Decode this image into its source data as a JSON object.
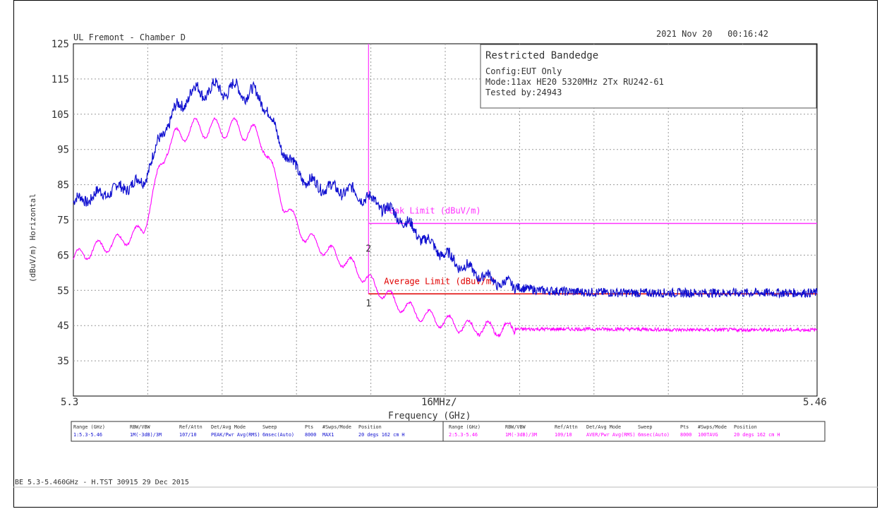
{
  "header": {
    "site": "UL Fremont - Chamber D",
    "datetime": "2021 Nov 20   00:16:42"
  },
  "infobox": {
    "title": "Restricted Bandedge",
    "config": "Config:EUT Only",
    "mode": "Mode:11ax HE20 5320MHz 2Tx RU242-61",
    "tested_by": "Tested by:24943"
  },
  "colors": {
    "peak_trace": "#1010d0",
    "average_trace": "#ff00ff",
    "peak_limit": "#ff33ff",
    "average_limit": "#e00000",
    "marker_line": "#ff33ff",
    "grid": "#9a9a9a"
  },
  "chart_data": {
    "type": "line",
    "xlabel": "Frequency (GHz)",
    "ylabel": "(dBuV/m) Horizontal",
    "x_tick_labels": [
      "5.3",
      "16MHz/",
      "5.46"
    ],
    "xlim": [
      5.3,
      5.46
    ],
    "ylim": [
      25,
      125
    ],
    "y_ticks": [
      125,
      115,
      105,
      95,
      85,
      75,
      65,
      55,
      45,
      35
    ],
    "grid": true,
    "series": [
      {
        "color": "#1010d0",
        "x": [
          5.3,
          5.305,
          5.31,
          5.315,
          5.32,
          5.325,
          5.33,
          5.335,
          5.338,
          5.341,
          5.345,
          5.35,
          5.355,
          5.36,
          5.365,
          5.37,
          5.375,
          5.38,
          5.385,
          5.39,
          5.395,
          5.4,
          5.41,
          5.42,
          5.43,
          5.44,
          5.45,
          5.46
        ],
        "y": [
          80,
          82,
          84,
          86,
          102,
          111,
          112,
          112,
          111,
          109,
          95,
          86,
          84,
          83,
          80,
          76,
          70,
          65,
          61,
          58,
          56,
          55,
          54.5,
          54.3,
          54.3,
          54.3,
          54.3,
          54.3
        ]
      },
      {
        "color": "#ff00ff",
        "x": [
          5.3,
          5.305,
          5.31,
          5.315,
          5.32,
          5.325,
          5.33,
          5.335,
          5.338,
          5.341,
          5.345,
          5.35,
          5.355,
          5.36,
          5.365,
          5.37,
          5.375,
          5.38,
          5.385,
          5.39,
          5.395,
          5.4,
          5.41,
          5.42,
          5.43,
          5.44,
          5.45,
          5.46
        ],
        "y": [
          64,
          67,
          69,
          72,
          96,
          101,
          101,
          101,
          100,
          97,
          80,
          70,
          66,
          62,
          56,
          51,
          48,
          46,
          44.5,
          44,
          44,
          44,
          44,
          44,
          43.8,
          43.8,
          43.8,
          43.8
        ]
      }
    ],
    "limits": [
      {
        "name": "Peak Limit (dBuV/m)",
        "y": 74,
        "x_start": 5.3635,
        "x_end": 5.46,
        "color": "#ff33ff"
      },
      {
        "name": "Average Limit (dBuV/m)",
        "y": 54,
        "x_start": 5.3635,
        "x_end": 5.46,
        "color": "#e00000"
      }
    ],
    "marker_line_x": 5.3635,
    "markers": [
      {
        "label": "2",
        "x": 5.3635,
        "y": 66
      },
      {
        "label": "1",
        "x": 5.3635,
        "y": 50.5
      }
    ]
  },
  "settings_table": {
    "left": {
      "headers": [
        "Range (GHz)",
        "RBW/VBW",
        "Ref/Attn",
        "Det/Avg Mode",
        "Sweep",
        "Pts",
        "#Swps/Mode",
        "Position"
      ],
      "values": [
        "1:5.3-5.46",
        "1M(-3dB)/3M",
        "107/10",
        "PEAK/Pwr Avg(RMS)",
        "6msec(Auto)",
        "8000",
        "MAX1",
        "20 degs 162 cm H"
      ]
    },
    "right": {
      "headers": [
        "Range (GHz)",
        "RBW/VBW",
        "Ref/Attn",
        "Det/Avg Mode",
        "Sweep",
        "Pts",
        "#Swps/Mode",
        "Position"
      ],
      "values": [
        "2:5.3-5.46",
        "1M(-3dB)/3M",
        "109/10",
        "AVER/Pwr Avg(RMS)",
        "6msec(Auto)",
        "8000",
        "100TAVG",
        "20 degs 162 cm H"
      ]
    }
  },
  "footer": "BE 5.3-5.460GHz - H.TST 30915 29 Dec 2015"
}
